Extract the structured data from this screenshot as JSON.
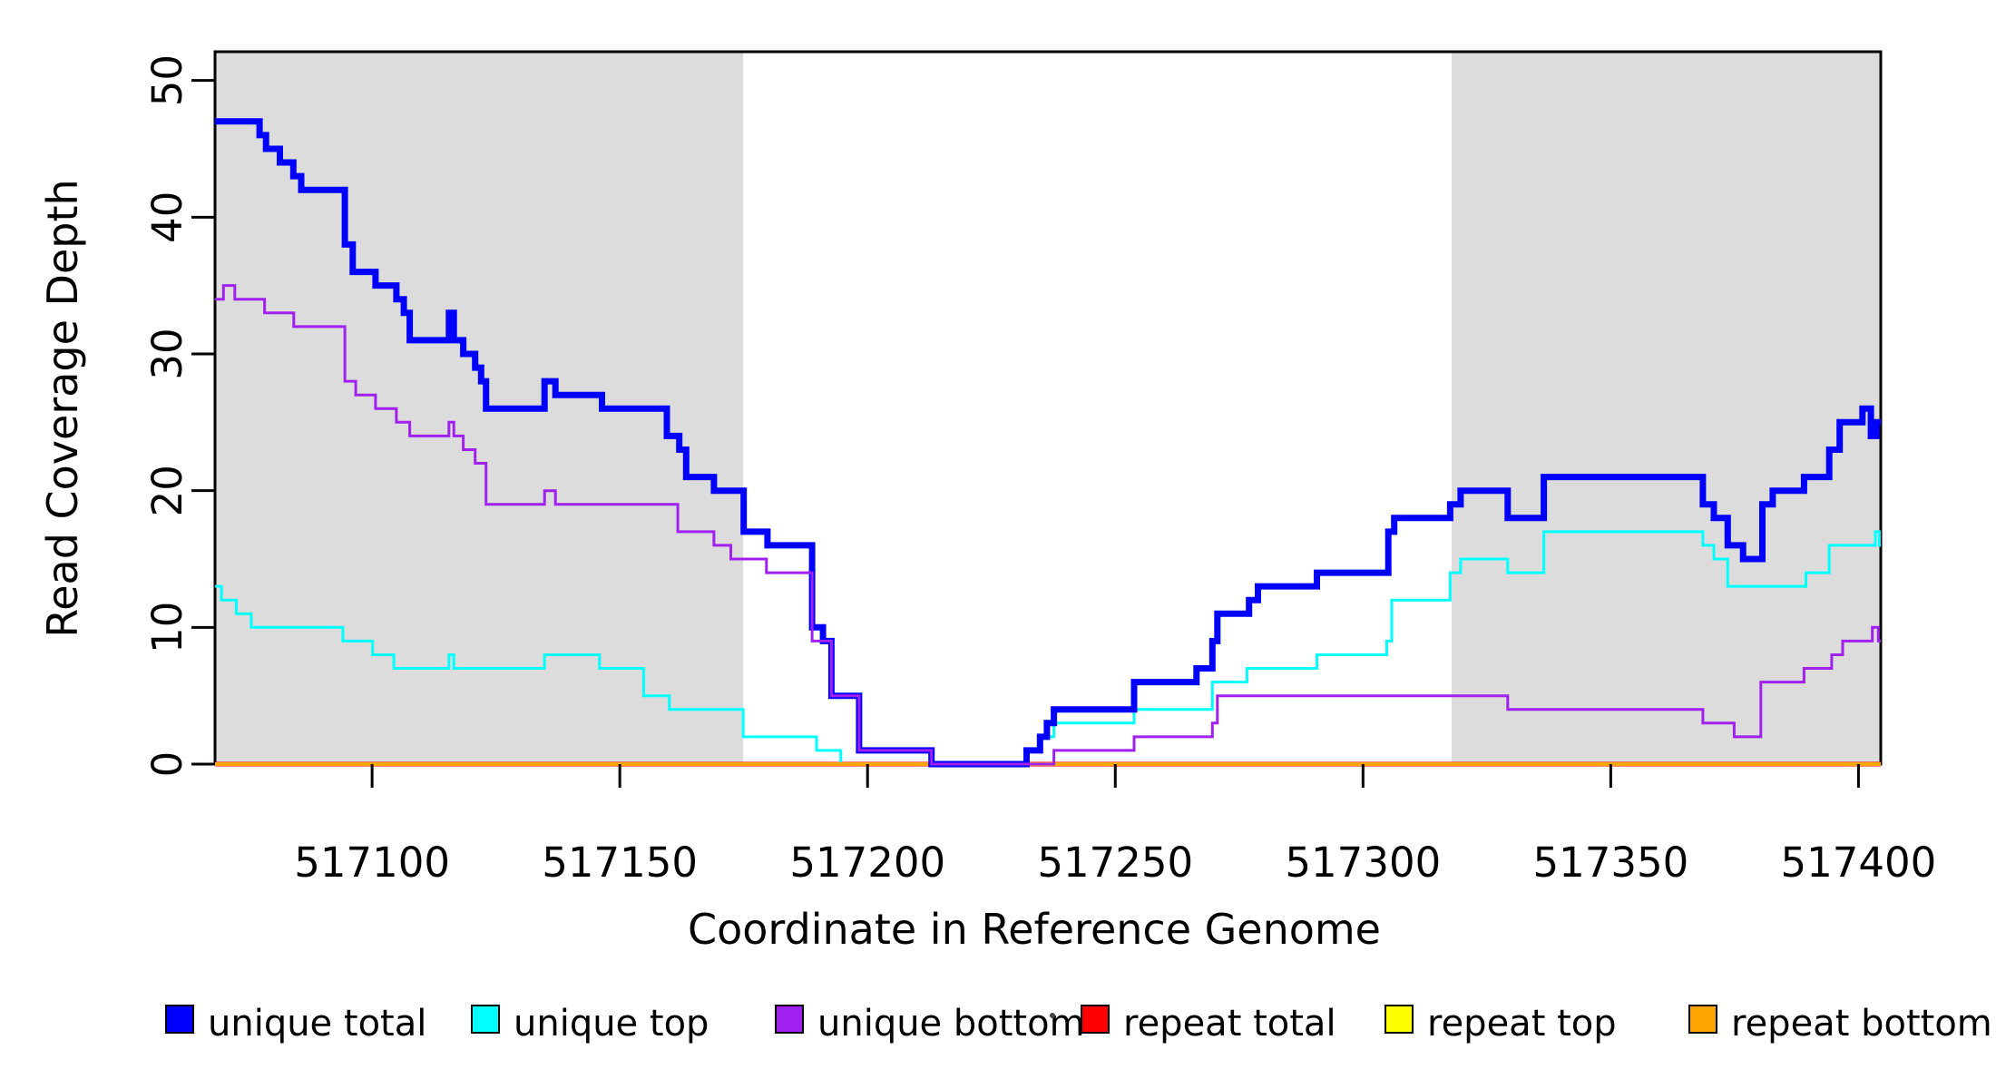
{
  "chart_data": {
    "type": "line",
    "subtype": "step-coverage-plot",
    "title": "",
    "xlabel": "Coordinate in Reference Genome",
    "ylabel": "Read Coverage Depth",
    "xlim": [
      517068.3,
      517404.5
    ],
    "ylim": [
      0,
      52.1
    ],
    "x_ticks": [
      517100,
      517150,
      517200,
      517250,
      517300,
      517350,
      517400
    ],
    "y_ticks": [
      0,
      10,
      20,
      30,
      40,
      50
    ],
    "grid": false,
    "shade_color": "#DCDCDC",
    "shaded_regions": [
      [
        517068.3,
        517174.9
      ],
      [
        517317.9,
        517404.5
      ]
    ],
    "series": [
      {
        "name": "repeat-total",
        "label": "repeat total",
        "color": "#FF0000",
        "line_width": 5,
        "points": [
          [
            517068.3,
            0
          ],
          [
            517404.5,
            0
          ]
        ]
      },
      {
        "name": "repeat-top",
        "label": "repeat top",
        "color": "#FFFF00",
        "line_width": 3,
        "points": [
          [
            517068.3,
            0
          ],
          [
            517404.5,
            0
          ]
        ]
      },
      {
        "name": "unique-top",
        "label": "unique top",
        "color": "#00FFFF",
        "line_width": 3,
        "points": [
          [
            517068.3,
            13
          ],
          [
            517069.6,
            12
          ],
          [
            517072.6,
            11
          ],
          [
            517075.6,
            10
          ],
          [
            517094.1,
            9
          ],
          [
            517100.1,
            8
          ],
          [
            517104.4,
            7
          ],
          [
            517115.5,
            8
          ],
          [
            517116.5,
            7
          ],
          [
            517134.8,
            8
          ],
          [
            517145.9,
            7
          ],
          [
            517154.8,
            5
          ],
          [
            517160.0,
            4
          ],
          [
            517174.9,
            2
          ],
          [
            517189.7,
            1
          ],
          [
            517194.6,
            0
          ],
          [
            517232.1,
            1
          ],
          [
            517234.8,
            2
          ],
          [
            517237.6,
            3
          ],
          [
            517253.8,
            4
          ],
          [
            517269.6,
            6
          ],
          [
            517276.6,
            7
          ],
          [
            517290.7,
            8
          ],
          [
            517304.8,
            9
          ],
          [
            517305.8,
            12
          ],
          [
            517317.6,
            14
          ],
          [
            517319.7,
            15
          ],
          [
            517329.2,
            14
          ],
          [
            517336.5,
            17
          ],
          [
            517368.6,
            16
          ],
          [
            517370.8,
            15
          ],
          [
            517373.6,
            13
          ],
          [
            517389.4,
            14
          ],
          [
            517394.1,
            16
          ],
          [
            517403.4,
            17
          ],
          [
            517404.2,
            16
          ],
          [
            517404.5,
            16
          ]
        ]
      },
      {
        "name": "repeat-bottom",
        "label": "repeat bottom",
        "color": "#FFA500",
        "line_width": 4,
        "points": [
          [
            517068.3,
            0
          ],
          [
            517404.5,
            0
          ]
        ]
      },
      {
        "name": "unique-total",
        "label": "unique total",
        "color": "#0000FF",
        "line_width": 7,
        "points": [
          [
            517068.3,
            47
          ],
          [
            517077.3,
            46
          ],
          [
            517078.6,
            45
          ],
          [
            517081.4,
            44
          ],
          [
            517084.1,
            43
          ],
          [
            517085.7,
            42
          ],
          [
            517094.5,
            38
          ],
          [
            517096.1,
            36
          ],
          [
            517100.7,
            35
          ],
          [
            517104.9,
            34
          ],
          [
            517106.4,
            33
          ],
          [
            517107.6,
            31
          ],
          [
            517115.5,
            33
          ],
          [
            517116.5,
            31
          ],
          [
            517118.4,
            30
          ],
          [
            517120.8,
            29
          ],
          [
            517122.0,
            28
          ],
          [
            517123.0,
            26
          ],
          [
            517134.8,
            28
          ],
          [
            517137.0,
            27
          ],
          [
            517146.4,
            26
          ],
          [
            517159.5,
            24
          ],
          [
            517162.0,
            23
          ],
          [
            517163.4,
            21
          ],
          [
            517169.0,
            20
          ],
          [
            517175.0,
            17
          ],
          [
            517179.8,
            16
          ],
          [
            517188.8,
            10
          ],
          [
            517191.0,
            9
          ],
          [
            517192.7,
            5
          ],
          [
            517198.3,
            1
          ],
          [
            517212.9,
            0
          ],
          [
            517232.1,
            1
          ],
          [
            517234.8,
            2
          ],
          [
            517236.2,
            3
          ],
          [
            517237.6,
            4
          ],
          [
            517253.8,
            6
          ],
          [
            517266.4,
            7
          ],
          [
            517269.6,
            9
          ],
          [
            517270.6,
            11
          ],
          [
            517277.0,
            12
          ],
          [
            517278.8,
            13
          ],
          [
            517290.7,
            14
          ],
          [
            517305.1,
            17
          ],
          [
            517306.3,
            18
          ],
          [
            517317.6,
            19
          ],
          [
            517319.7,
            20
          ],
          [
            517329.2,
            18
          ],
          [
            517336.5,
            21
          ],
          [
            517368.6,
            19
          ],
          [
            517370.8,
            18
          ],
          [
            517373.6,
            16
          ],
          [
            517376.7,
            15
          ],
          [
            517380.6,
            19
          ],
          [
            517382.7,
            20
          ],
          [
            517389.0,
            21
          ],
          [
            517394.1,
            23
          ],
          [
            517396.2,
            25
          ],
          [
            517400.8,
            26
          ],
          [
            517402.5,
            24
          ],
          [
            517403.6,
            25
          ],
          [
            517404.5,
            25
          ]
        ]
      },
      {
        "name": "unique-bottom",
        "label": "unique bottom",
        "color": "#A020F0",
        "line_width": 3,
        "points": [
          [
            517068.3,
            34
          ],
          [
            517070.0,
            35
          ],
          [
            517072.3,
            34
          ],
          [
            517078.3,
            33
          ],
          [
            517084.2,
            32
          ],
          [
            517094.5,
            28
          ],
          [
            517096.7,
            27
          ],
          [
            517100.7,
            26
          ],
          [
            517104.9,
            25
          ],
          [
            517107.6,
            24
          ],
          [
            517115.5,
            25
          ],
          [
            517116.5,
            24
          ],
          [
            517118.4,
            23
          ],
          [
            517120.8,
            22
          ],
          [
            517123.0,
            19
          ],
          [
            517134.8,
            20
          ],
          [
            517137.0,
            19
          ],
          [
            517161.7,
            17
          ],
          [
            517169.0,
            16
          ],
          [
            517172.4,
            15
          ],
          [
            517179.6,
            14
          ],
          [
            517188.8,
            9
          ],
          [
            517192.7,
            5
          ],
          [
            517198.3,
            1
          ],
          [
            517212.9,
            0
          ],
          [
            517237.6,
            1
          ],
          [
            517253.8,
            2
          ],
          [
            517269.6,
            3
          ],
          [
            517270.6,
            5
          ],
          [
            517329.2,
            4
          ],
          [
            517368.6,
            3
          ],
          [
            517374.9,
            2
          ],
          [
            517380.3,
            6
          ],
          [
            517389.0,
            7
          ],
          [
            517394.6,
            8
          ],
          [
            517396.8,
            9
          ],
          [
            517402.8,
            10
          ],
          [
            517404.0,
            9
          ],
          [
            517404.5,
            9
          ]
        ]
      }
    ],
    "legend": {
      "position": "bottom",
      "items": [
        {
          "label": "unique total",
          "color": "#0000FF"
        },
        {
          "label": "unique top",
          "color": "#00FFFF"
        },
        {
          "label": "unique bottom",
          "color": "#A020F0"
        },
        {
          "label": "repeat total",
          "color": "#FF0000"
        },
        {
          "label": "repeat top",
          "color": "#FFFF00"
        },
        {
          "label": "repeat bottom",
          "color": "#FFA500"
        }
      ]
    }
  }
}
